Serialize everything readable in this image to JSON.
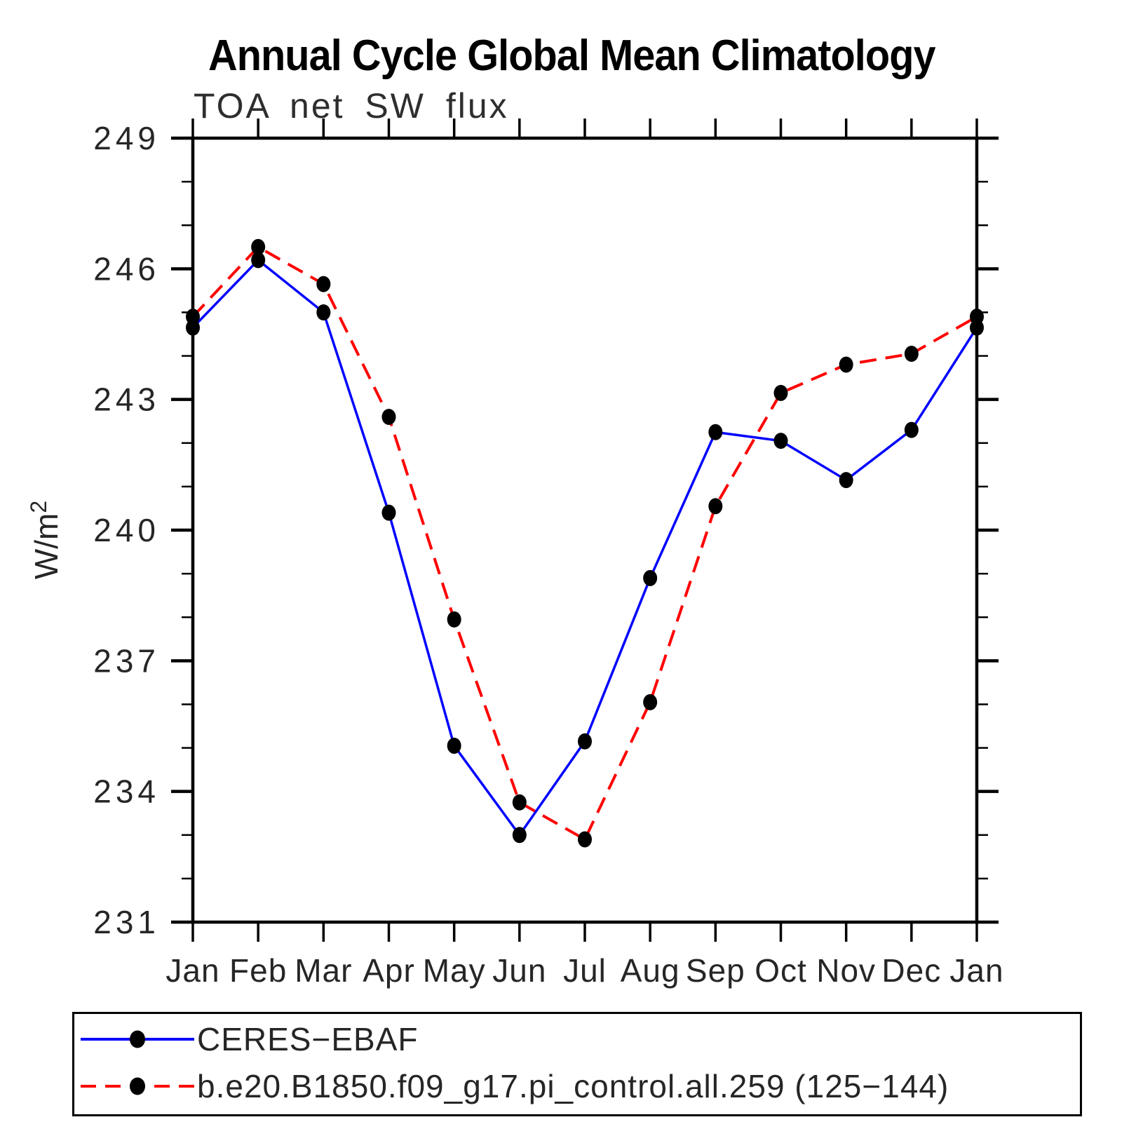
{
  "title": "Annual Cycle Global Mean Climatology",
  "subtitle": "TOA net SW flux",
  "y_axis": {
    "label_base": "W/m",
    "label_exponent": "2",
    "tick_labels": [
      "249",
      "246",
      "243",
      "240",
      "237",
      "234",
      "231"
    ]
  },
  "x_axis": {
    "tick_labels": [
      "Jan",
      "Feb",
      "Mar",
      "Apr",
      "May",
      "Jun",
      "Jul",
      "Aug",
      "Sep",
      "Oct",
      "Nov",
      "Dec",
      "Jan"
    ]
  },
  "legend": {
    "marker_color": "#000000",
    "items": [
      {
        "label": "CERES−EBAF",
        "color": "#0000ff",
        "line_style": "solid"
      },
      {
        "label": "b.e20.B1850.f09_g17.pi_control.all.259 (125−144)",
        "color": "#ff0000",
        "line_style": "dashed"
      }
    ]
  },
  "chart_data": {
    "type": "line",
    "title": "Annual Cycle Global Mean Climatology",
    "subtitle": "TOA net SW flux",
    "ylabel": "W/m2",
    "xlabel": "",
    "categories": [
      "Jan",
      "Feb",
      "Mar",
      "Apr",
      "May",
      "Jun",
      "Jul",
      "Aug",
      "Sep",
      "Oct",
      "Nov",
      "Dec",
      "Jan"
    ],
    "ylim": [
      231,
      249
    ],
    "ytick_major": [
      231,
      234,
      237,
      240,
      243,
      246,
      249
    ],
    "ytick_minor_step": 1,
    "grid": false,
    "legend_position": "bottom",
    "marker": "filled-circle",
    "marker_color": "#000000",
    "series": [
      {
        "name": "CERES-EBAF",
        "color": "#0000ff",
        "line_style": "solid",
        "values": [
          244.65,
          246.2,
          245.0,
          240.4,
          235.05,
          233.0,
          235.15,
          238.9,
          242.25,
          242.05,
          241.15,
          242.3,
          244.65
        ]
      },
      {
        "name": "b.e20.B1850.f09_g17.pi_control.all.259 (125-144)",
        "color": "#ff0000",
        "line_style": "dashed",
        "values": [
          244.9,
          246.5,
          245.65,
          242.6,
          237.95,
          233.75,
          232.9,
          236.05,
          240.55,
          243.15,
          243.8,
          244.05,
          244.9
        ]
      }
    ]
  }
}
